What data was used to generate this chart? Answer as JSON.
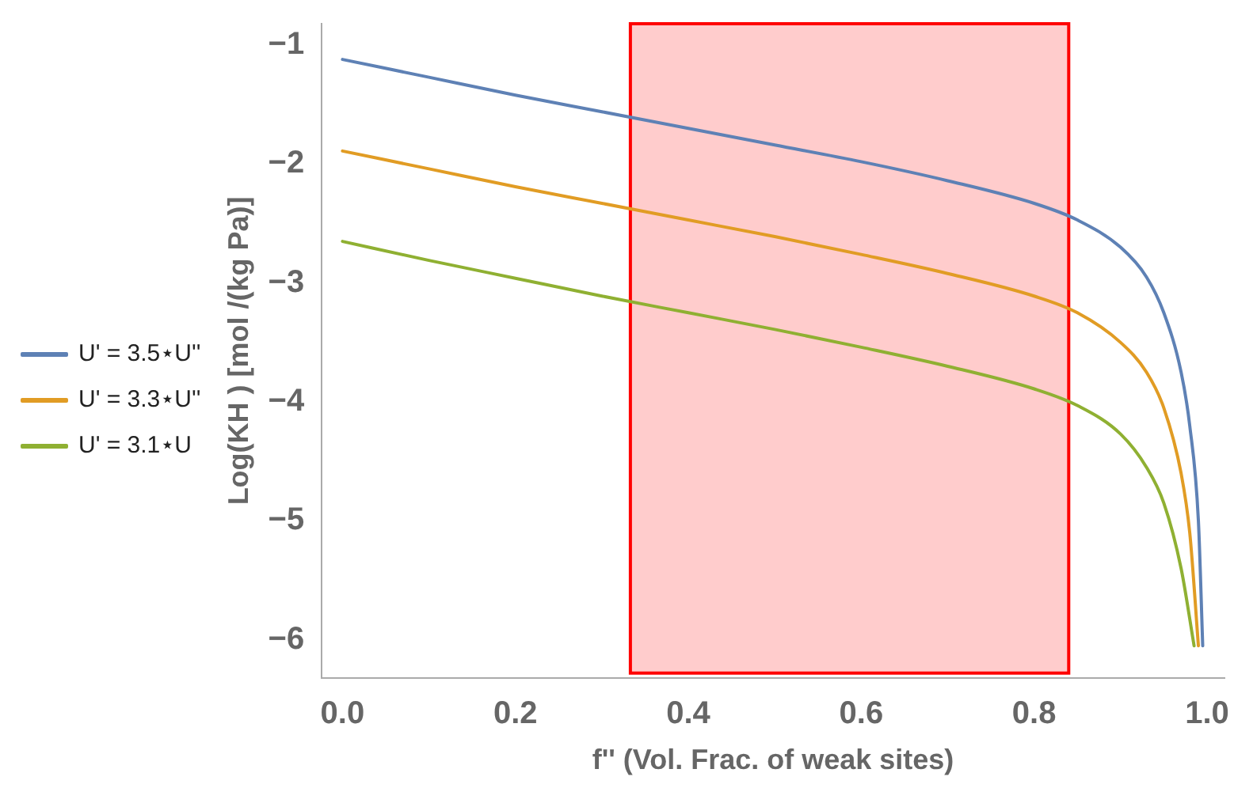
{
  "chart_data": {
    "type": "line",
    "xlabel": "f'' (Vol. Frac. of weak sites)",
    "ylabel": "Log(KH ) [mol /(kg Pa)]",
    "series": [
      {
        "name": "U' = 3.5⋆U''",
        "color": "#5e81b5",
        "x": [
          0,
          0.1,
          0.2,
          0.3,
          0.4,
          0.5,
          0.6,
          0.7,
          0.8,
          0.85,
          0.9,
          0.93,
          0.95,
          0.97,
          0.98,
          0.99,
          0.995
        ],
        "values": [
          -1.12,
          -1.27,
          -1.42,
          -1.56,
          -1.7,
          -1.84,
          -1.98,
          -2.14,
          -2.33,
          -2.47,
          -2.7,
          -2.95,
          -3.25,
          -3.75,
          -4.2,
          -5.0,
          -6.05
        ]
      },
      {
        "name": "U' = 3.3⋆U''",
        "color": "#e19c24",
        "x": [
          0,
          0.1,
          0.2,
          0.3,
          0.4,
          0.5,
          0.6,
          0.7,
          0.8,
          0.85,
          0.9,
          0.93,
          0.95,
          0.97,
          0.98,
          0.99
        ],
        "values": [
          -1.89,
          -2.04,
          -2.19,
          -2.33,
          -2.47,
          -2.61,
          -2.76,
          -2.92,
          -3.11,
          -3.25,
          -3.5,
          -3.75,
          -4.05,
          -4.6,
          -5.1,
          -6.05
        ]
      },
      {
        "name": "U' = 3.1⋆U",
        "color": "#8fb032",
        "x": [
          0,
          0.1,
          0.2,
          0.3,
          0.4,
          0.5,
          0.6,
          0.7,
          0.8,
          0.85,
          0.9,
          0.93,
          0.95,
          0.97,
          0.985
        ],
        "values": [
          -2.65,
          -2.81,
          -2.96,
          -3.11,
          -3.25,
          -3.39,
          -3.54,
          -3.7,
          -3.89,
          -4.03,
          -4.27,
          -4.55,
          -4.85,
          -5.4,
          -6.05
        ]
      }
    ],
    "xlim": [
      -0.024,
      1.02
    ],
    "xticks": [
      {
        "value": 0,
        "label": "0.0"
      },
      0.2,
      0.4,
      0.6,
      0.8,
      {
        "value": 1,
        "label": "1.0"
      }
    ],
    "ylim": [
      -6.32,
      -0.82
    ],
    "yticks": [
      {
        "value": -6,
        "label": "−6"
      },
      {
        "value": -5,
        "label": "−5"
      },
      {
        "value": -4,
        "label": "−4"
      },
      {
        "value": -3,
        "label": "−3"
      },
      {
        "value": -2,
        "label": "−2"
      },
      {
        "value": -1,
        "label": "−1"
      }
    ],
    "bands": [
      {
        "axis": "x",
        "from": 0.333,
        "to": 0.84,
        "color": "#ff0000"
      }
    ],
    "legend": "left",
    "grid": false,
    "marker": "none",
    "line_style": "solid"
  }
}
